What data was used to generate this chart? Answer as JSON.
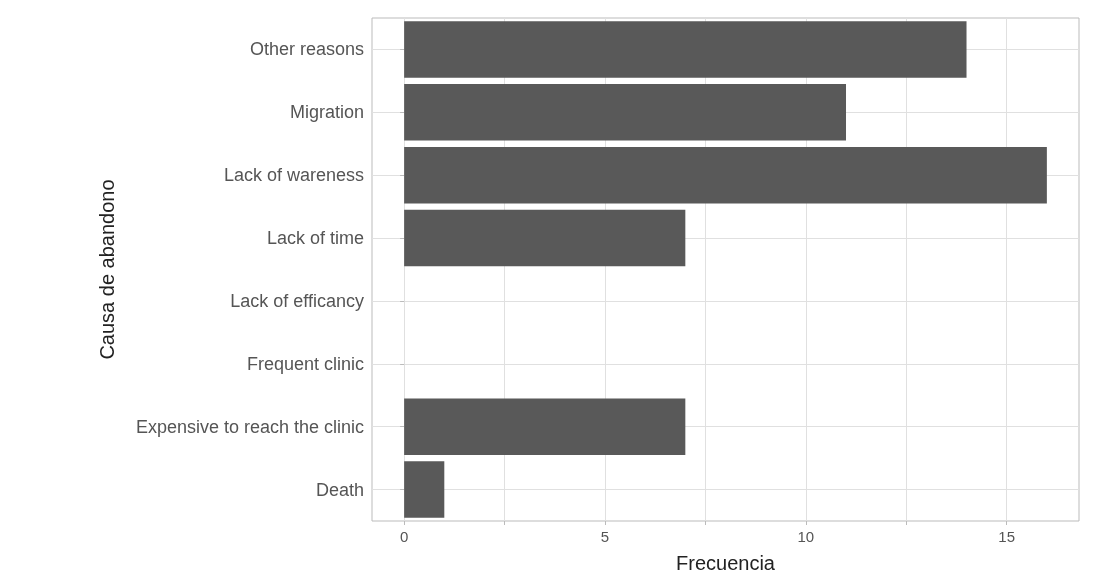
{
  "chart_data": {
    "type": "bar",
    "orientation": "horizontal",
    "xlabel": "Frecuencia",
    "ylabel": "Causa de abandono",
    "categories": [
      "Other reasons",
      "Migration",
      "Lack of wareness",
      "Lack of time",
      "Lack of efficancy",
      "Frequent clinic",
      "Expensive to reach the clinic",
      "Death"
    ],
    "values": [
      14,
      11,
      16,
      7,
      0,
      0,
      7,
      1
    ],
    "color": "#595959",
    "xlim": [
      -0.8,
      16.8
    ],
    "xticks": [
      0,
      {
        "value": 2.5,
        "label": null
      },
      5,
      {
        "value": 7.5,
        "label": null
      },
      10,
      {
        "value": 12.5,
        "label": null
      },
      15
    ],
    "grid": true
  }
}
